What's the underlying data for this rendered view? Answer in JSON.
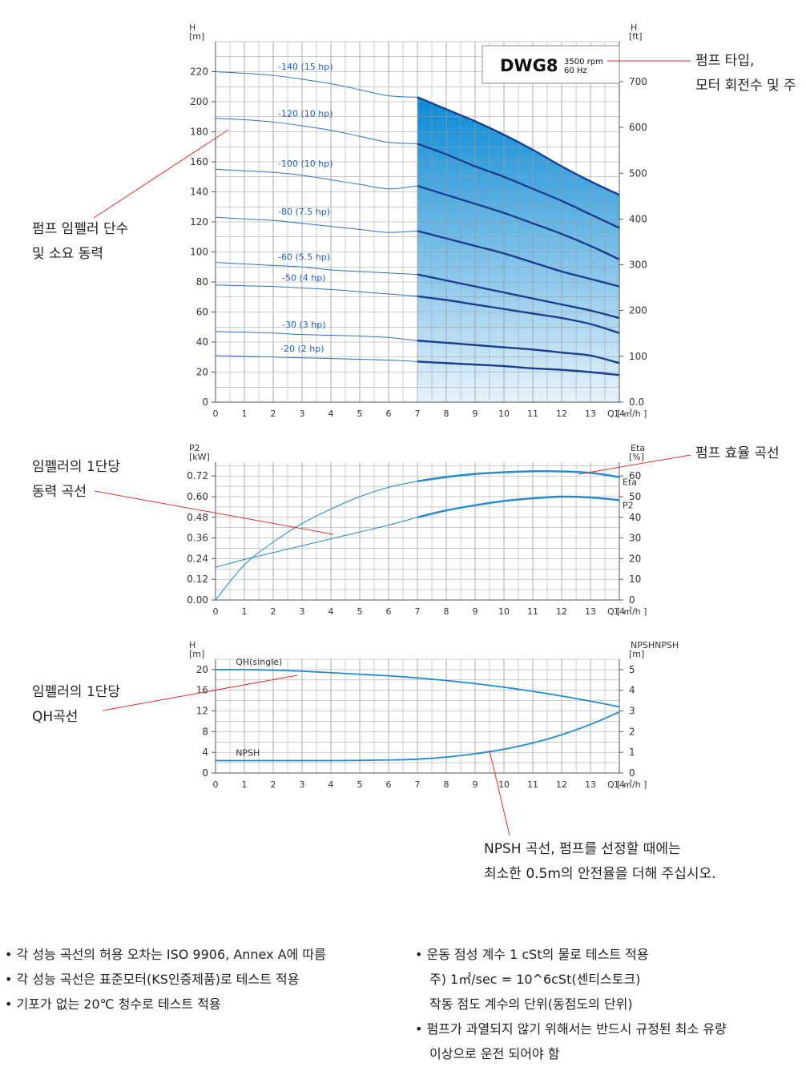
{
  "colors": {
    "grid": "#9a9a9a",
    "axis": "#555555",
    "thin_curve": "#2b73c2",
    "thick_curve": "#1a3f8f",
    "fill_top": "#0a8ad6",
    "fill_bottom": "#e6f3fb",
    "eff_curve": "#1e8ad0",
    "label_blue": "#1f5fb5",
    "callout_line": "#e03030"
  },
  "chart_data": [
    {
      "type": "line",
      "title": "DWG8",
      "title_rpm": "3500 rpm",
      "title_hz": "60 Hz",
      "ylabel_left": [
        "H",
        "[m]"
      ],
      "ylabel_right": [
        "H",
        "[ft]"
      ],
      "xlabel": "Q [ ㎥/h ]",
      "xlim": [
        0,
        14
      ],
      "ylim": [
        0,
        240
      ],
      "x_ticks": [
        0,
        1,
        2,
        3,
        4,
        5,
        6,
        7,
        8,
        9,
        10,
        11,
        12,
        13,
        14
      ],
      "y_ticks": [
        0,
        20,
        40,
        60,
        80,
        100,
        120,
        140,
        160,
        180,
        200,
        220
      ],
      "y_right_ticks": [
        {
          "label": "0.0",
          "h": 0
        },
        {
          "label": "100",
          "h": 30.5
        },
        {
          "label": "200",
          "h": 61
        },
        {
          "label": "300",
          "h": 91.4
        },
        {
          "label": "400",
          "h": 121.9
        },
        {
          "label": "500",
          "h": 152.4
        },
        {
          "label": "600",
          "h": 182.9
        },
        {
          "label": "700",
          "h": 213.4
        }
      ],
      "operating_range": [
        7,
        14
      ],
      "x": [
        0,
        1,
        2,
        3,
        4,
        5,
        6,
        7,
        8,
        9,
        10,
        11,
        12,
        13,
        14
      ],
      "series": [
        {
          "name": "-140 (15 hp)",
          "values": [
            220,
            219,
            217.5,
            215,
            212,
            208,
            204,
            203,
            195,
            187,
            178,
            168,
            157,
            147,
            138
          ]
        },
        {
          "name": "-120 (10 hp)",
          "values": [
            189,
            188,
            186.5,
            184,
            181,
            177,
            173,
            172,
            165,
            157,
            150,
            142,
            134,
            125,
            116
          ]
        },
        {
          "name": "-100 (10 hp)",
          "values": [
            155,
            154,
            153,
            151,
            148,
            145,
            142,
            144,
            138,
            132,
            126,
            119,
            112,
            104,
            95
          ]
        },
        {
          "name": "-80 (7.5 hp)",
          "values": [
            123,
            122,
            121,
            119,
            117,
            115,
            113,
            114,
            109,
            104,
            99,
            93,
            87,
            82,
            77
          ]
        },
        {
          "name": "-60 (5.5 hp)",
          "values": [
            93,
            92,
            91,
            90,
            88,
            87,
            86,
            85,
            81,
            77,
            73,
            69,
            65,
            61,
            56
          ]
        },
        {
          "name": "-50 (4 hp)",
          "values": [
            78,
            77.5,
            77,
            76,
            75,
            73.5,
            72,
            70.5,
            68,
            65,
            62,
            59,
            56,
            52,
            46
          ]
        },
        {
          "name": "-30 (3 hp)",
          "values": [
            47,
            46.5,
            46,
            45,
            44.5,
            44,
            43,
            41,
            39.5,
            38,
            36.5,
            35,
            33,
            31,
            26
          ]
        },
        {
          "name": "-20 (2 hp)",
          "values": [
            31,
            30.5,
            30,
            29.5,
            29,
            28.5,
            28,
            27,
            26,
            25,
            24,
            22.5,
            21.5,
            20,
            18
          ]
        }
      ]
    },
    {
      "type": "line",
      "ylabel_left": [
        "P2",
        "[kW]"
      ],
      "ylabel_right": [
        "Eta",
        "[%]"
      ],
      "xlabel": "Q [ ㎥/h ]",
      "xlim": [
        0,
        14
      ],
      "ylim": [
        0,
        0.8
      ],
      "x_ticks": [
        0,
        1,
        2,
        3,
        4,
        5,
        6,
        7,
        8,
        9,
        10,
        11,
        12,
        13,
        14
      ],
      "y_ticks": [
        "0.00",
        "0.12",
        "0.24",
        "0.36",
        "0.48",
        "0.60",
        "0.72"
      ],
      "y_right_ticks": [
        0,
        10,
        20,
        30,
        40,
        50,
        60
      ],
      "right_ylim": [
        0,
        66.67
      ],
      "x": [
        0,
        1,
        2,
        3,
        4,
        5,
        6,
        7,
        8,
        9,
        10,
        11,
        12,
        13,
        14
      ],
      "series": [
        {
          "name": "Eta",
          "axis": "right",
          "values": [
            0,
            17,
            28,
            37,
            44,
            50,
            54.5,
            57.5,
            59.5,
            61,
            61.8,
            62.3,
            62.2,
            61.5,
            59.5
          ]
        },
        {
          "name": "P2",
          "axis": "left",
          "values": [
            0.19,
            0.235,
            0.275,
            0.315,
            0.355,
            0.395,
            0.435,
            0.48,
            0.52,
            0.55,
            0.575,
            0.59,
            0.6,
            0.595,
            0.58
          ]
        }
      ]
    },
    {
      "type": "line",
      "ylabel_left": [
        "H",
        "[m]"
      ],
      "ylabel_right": [
        "NPSHNPSH",
        "[m]"
      ],
      "xlabel": "Q [ ㎥/h ]",
      "xlim": [
        0,
        14
      ],
      "ylim": [
        0,
        22
      ],
      "x_ticks": [
        0,
        1,
        2,
        3,
        4,
        5,
        6,
        7,
        8,
        9,
        10,
        11,
        12,
        13,
        14
      ],
      "y_ticks": [
        0,
        4,
        8,
        12,
        16,
        20
      ],
      "y_right_ticks": [
        0,
        1,
        2,
        3,
        4,
        5
      ],
      "right_ylim": [
        0,
        5.5
      ],
      "x": [
        0,
        1,
        2,
        3,
        4,
        5,
        6,
        7,
        8,
        9,
        10,
        11,
        12,
        13,
        14
      ],
      "series": [
        {
          "name": "QH(single)",
          "axis": "left",
          "values": [
            20,
            20,
            19.9,
            19.7,
            19.4,
            19.1,
            18.8,
            18.4,
            17.9,
            17.3,
            16.6,
            15.8,
            14.9,
            13.9,
            12.8
          ]
        },
        {
          "name": "NPSH",
          "axis": "right",
          "values": [
            0.6,
            0.6,
            0.6,
            0.6,
            0.6,
            0.61,
            0.63,
            0.67,
            0.77,
            0.93,
            1.15,
            1.45,
            1.85,
            2.35,
            2.95
          ]
        }
      ]
    }
  ],
  "callouts": {
    "pump_type": [
      "펌프 타입,",
      "모터 회전수 및 주"
    ],
    "impeller_stages": [
      "펌프 임펠러 단수",
      "및 소요 동력"
    ],
    "pump_efficiency": "펌프 효율 곡선",
    "impeller_power": [
      "임펠러의 1단당",
      "동력 곡선"
    ],
    "impeller_qh": [
      "임펠러의 1단당",
      "QH곡선"
    ],
    "npsh_note": [
      "NPSH 곡선, 펌프를 선정할 때에는",
      "최소한 0.5m의 안전율을 더해 주십시오."
    ]
  },
  "notes": {
    "left": [
      "• 각 성능 곡선의 허용 오차는 ISO 9906, Annex A에 따름",
      "• 각 성능 곡선은 표준모터(KS인증제품)로 테스트 적용",
      "• 기포가 없는 20℃ 청수로 테스트 적용"
    ],
    "right": [
      "• 운동 점성 계수 1 cSt의 물로 테스트 적용",
      "주) 1㎡/sec = 10^6cSt(센티스토크)",
      "작동 점도 계수의 단위(동점도의 단위)",
      "• 펌프가 과열되지 않기 위해서는 반드시 규정된 최소 유량",
      "이상으로 운전 되어야 함"
    ]
  }
}
